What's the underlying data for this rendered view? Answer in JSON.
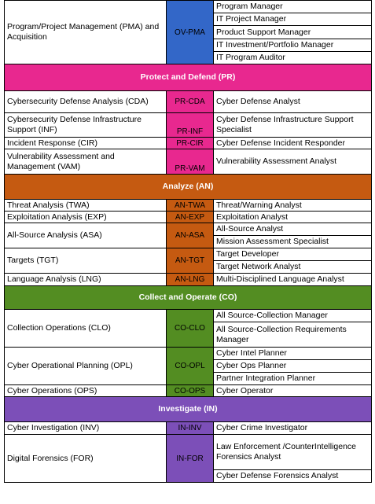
{
  "colors": {
    "oversee_code": "#3367c8",
    "protect": "#e8288f",
    "analyze": "#c55a11",
    "collect": "#538d22",
    "investigate": "#7c4fb8"
  },
  "oversee_tail": {
    "area": "Program/Project Management (PMA) and Acquisition",
    "code": "OV-PMA",
    "roles": [
      "Program Manager",
      "IT Project Manager",
      "Product Support Manager",
      "IT Investment/Portfolio Manager",
      "IT Program Auditor"
    ]
  },
  "protect": {
    "header": "Protect and Defend (PR)",
    "rows": [
      {
        "area": "Cybersecurity Defense Analysis (CDA)",
        "code": "PR-CDA",
        "role": "Cyber Defense Analyst"
      },
      {
        "area": "Cybersecurity Defense Infrastructure Support (INF)",
        "code": "PR-INF",
        "role": "Cyber Defense Infrastructure Support Specialist"
      },
      {
        "area": "Incident Response (CIR)",
        "code": "PR-CIR",
        "role": "Cyber Defense Incident Responder"
      },
      {
        "area": "Vulnerability Assessment and Management (VAM)",
        "code": "PR-VAM",
        "role": "Vulnerability Assessment Analyst"
      }
    ]
  },
  "analyze": {
    "header": "Analyze (AN)",
    "twa": {
      "area": "Threat Analysis (TWA)",
      "code": "AN-TWA",
      "role": "Threat/Warning Analyst"
    },
    "exp": {
      "area": "Exploitation Analysis (EXP)",
      "code": "AN-EXP",
      "role": "Exploitation Analyst"
    },
    "asa": {
      "area": "All-Source Analysis (ASA)",
      "code": "AN-ASA",
      "roles": [
        "All-Source Analyst",
        "Mission Assessment Specialist"
      ]
    },
    "tgt": {
      "area": "Targets (TGT)",
      "code": "AN-TGT",
      "roles": [
        "Target Developer",
        "Target Network Analyst"
      ]
    },
    "lng": {
      "area": "Language Analysis (LNG)",
      "code": "AN-LNG",
      "role": "Multi-Disciplined Language Analyst"
    }
  },
  "collect": {
    "header": "Collect and Operate (CO)",
    "clo": {
      "area": "Collection Operations (CLO)",
      "code": "CO-CLO",
      "roles": [
        "All Source-Collection Manager",
        "All Source-Collection Requirements Manager"
      ]
    },
    "opl": {
      "area": "Cyber Operational Planning (OPL)",
      "code": "CO-OPL",
      "roles": [
        "Cyber Intel Planner",
        "Cyber Ops Planner",
        "Partner Integration Planner"
      ]
    },
    "ops": {
      "area": "Cyber Operations (OPS)",
      "code": "CO-OPS",
      "role": "Cyber Operator"
    }
  },
  "investigate": {
    "header": "Investigate (IN)",
    "inv": {
      "area": "Cyber Investigation (INV)",
      "code": "IN-INV",
      "role": "Cyber Crime Investigator"
    },
    "for": {
      "area": "Digital Forensics (FOR)",
      "code": "IN-FOR",
      "roles": [
        "Law Enforcement /CounterIntelligence Forensics Analyst",
        "Cyber Defense Forensics Analyst"
      ]
    }
  }
}
